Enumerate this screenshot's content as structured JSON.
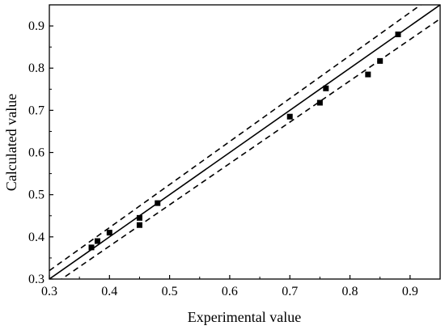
{
  "chart_data": {
    "type": "scatter",
    "title": "",
    "xlabel": "Experimental value",
    "ylabel": "Calculated value",
    "xlim": [
      0.3,
      0.95
    ],
    "ylim": [
      0.3,
      0.95
    ],
    "x_ticks": [
      "0.3",
      "0.4",
      "0.5",
      "0.6",
      "0.7",
      "0.8",
      "0.9"
    ],
    "y_ticks": [
      "0.3",
      "0.4",
      "0.5",
      "0.6",
      "0.7",
      "0.8",
      "0.9"
    ],
    "grid": false,
    "legend": "none",
    "marker": "square",
    "points": [
      {
        "x": 0.37,
        "y": 0.375
      },
      {
        "x": 0.38,
        "y": 0.39
      },
      {
        "x": 0.4,
        "y": 0.41
      },
      {
        "x": 0.45,
        "y": 0.445
      },
      {
        "x": 0.45,
        "y": 0.428
      },
      {
        "x": 0.48,
        "y": 0.48
      },
      {
        "x": 0.7,
        "y": 0.685
      },
      {
        "x": 0.75,
        "y": 0.718
      },
      {
        "x": 0.76,
        "y": 0.752
      },
      {
        "x": 0.83,
        "y": 0.785
      },
      {
        "x": 0.85,
        "y": 0.817
      },
      {
        "x": 0.88,
        "y": 0.88
      }
    ],
    "reference_lines": [
      {
        "style": "solid",
        "points": [
          [
            0.3,
            0.3
          ],
          [
            0.95,
            0.95
          ]
        ]
      },
      {
        "style": "dashed",
        "points": [
          [
            0.3,
            0.32
          ],
          [
            0.95,
            0.983
          ]
        ]
      },
      {
        "style": "dashed",
        "points": [
          [
            0.3,
            0.28
          ],
          [
            0.95,
            0.917
          ]
        ]
      }
    ],
    "colors": {
      "marker": "#000000",
      "line": "#000000",
      "axis": "#000000"
    }
  }
}
